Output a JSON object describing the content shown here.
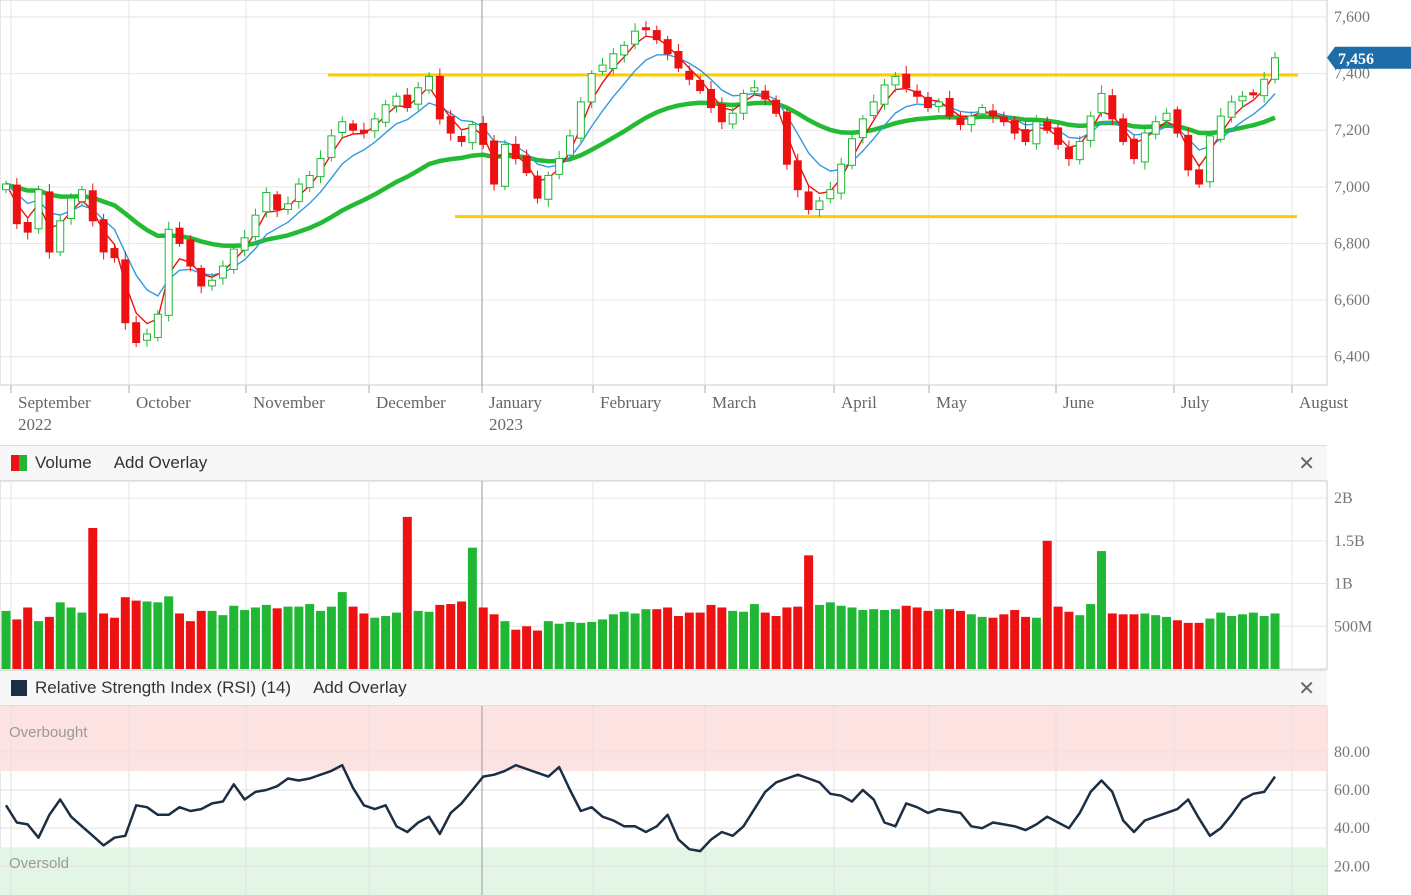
{
  "chart_data": [
    {
      "type": "candlestick",
      "title": "",
      "months": [
        "September",
        "October",
        "November",
        "December",
        "January",
        "February",
        "March",
        "April",
        "May",
        "June",
        "July",
        "August"
      ],
      "years": {
        "September": "2022",
        "January": "2023"
      },
      "y_ticks": [
        "6,400",
        "6,600",
        "6,800",
        "7,000",
        "7,200",
        "7,400",
        "7,600"
      ],
      "ylim": [
        6300,
        7660
      ],
      "last_price": "7,456",
      "support_level": 6895,
      "resistance_level": 7395,
      "close": [
        7010,
        6870,
        6840,
        6990,
        6770,
        6880,
        6960,
        6990,
        6880,
        6770,
        6750,
        6520,
        6450,
        6480,
        6550,
        6850,
        6800,
        6720,
        6650,
        6670,
        6720,
        6780,
        6820,
        6900,
        6980,
        6920,
        6940,
        7010,
        7040,
        7100,
        7180,
        7230,
        7200,
        7190,
        7240,
        7290,
        7320,
        7280,
        7350,
        7390,
        7240,
        7190,
        7160,
        7220,
        7150,
        7010,
        7150,
        7100,
        7050,
        6960,
        7040,
        7100,
        7180,
        7300,
        7400,
        7430,
        7470,
        7500,
        7550,
        7560,
        7520,
        7470,
        7420,
        7380,
        7340,
        7280,
        7230,
        7260,
        7330,
        7350,
        7310,
        7260,
        7080,
        6990,
        6920,
        6950,
        6990,
        7080,
        7170,
        7240,
        7300,
        7360,
        7390,
        7350,
        7320,
        7280,
        7300,
        7250,
        7220,
        7250,
        7280,
        7250,
        7230,
        7190,
        7160,
        7230,
        7200,
        7150,
        7100,
        7160,
        7250,
        7330,
        7240,
        7160,
        7100,
        7190,
        7230,
        7260,
        7190,
        7060,
        7010,
        7180,
        7250,
        7300,
        7320,
        7330,
        7380,
        7456
      ],
      "volume": [
        0.68,
        0.58,
        0.72,
        0.56,
        0.61,
        0.78,
        0.72,
        0.66,
        1.65,
        0.65,
        0.6,
        0.84,
        0.8,
        0.79,
        0.78,
        0.85,
        0.65,
        0.56,
        0.68,
        0.68,
        0.63,
        0.74,
        0.69,
        0.72,
        0.75,
        0.71,
        0.73,
        0.73,
        0.76,
        0.68,
        0.73,
        0.9,
        0.73,
        0.65,
        0.6,
        0.62,
        0.66,
        1.78,
        0.68,
        0.67,
        0.75,
        0.76,
        0.79,
        1.42,
        0.72,
        0.64,
        0.56,
        0.46,
        0.5,
        0.45,
        0.56,
        0.53,
        0.55,
        0.54,
        0.55,
        0.58,
        0.64,
        0.67,
        0.65,
        0.7,
        0.7,
        0.72,
        0.62,
        0.66,
        0.66,
        0.75,
        0.72,
        0.68,
        0.67,
        0.76,
        0.66,
        0.62,
        0.72,
        0.73,
        1.33,
        0.75,
        0.78,
        0.74,
        0.72,
        0.69,
        0.7,
        0.69,
        0.7,
        0.74,
        0.72,
        0.68,
        0.7,
        0.7,
        0.68,
        0.64,
        0.61,
        0.6,
        0.64,
        0.69,
        0.61,
        0.6,
        1.5,
        0.73,
        0.67,
        0.63,
        0.76,
        1.38,
        0.65,
        0.64,
        0.64,
        0.65,
        0.63,
        0.61,
        0.57,
        0.54,
        0.54,
        0.59,
        0.66,
        0.62,
        0.64,
        0.66,
        0.62,
        0.65
      ]
    },
    {
      "type": "line",
      "title": "Relative Strength Index (RSI) (14)",
      "y_ticks": [
        "20.00",
        "40.00",
        "60.00",
        "80.00"
      ],
      "ylim": [
        5,
        104
      ],
      "overbought": 70,
      "oversold": 30,
      "values": [
        52,
        43,
        42,
        35,
        47,
        55,
        46,
        41,
        36,
        31,
        35,
        36,
        52,
        51,
        47,
        47,
        51,
        49,
        50,
        53,
        54,
        63,
        55,
        59,
        60,
        62,
        66,
        65,
        66,
        68,
        70,
        73,
        61,
        52,
        50,
        52,
        41,
        38,
        43,
        46,
        37,
        48,
        53,
        60,
        67,
        68,
        70,
        73,
        71,
        69,
        67,
        72,
        60,
        49,
        51,
        46,
        44,
        41,
        41,
        38,
        41,
        47,
        34,
        29,
        28,
        34,
        38,
        36,
        41,
        50,
        59,
        64,
        66,
        68,
        66,
        64,
        58,
        57,
        54,
        60,
        55,
        43,
        41,
        53,
        51,
        48,
        50,
        49,
        48,
        41,
        40,
        43,
        42,
        41,
        39,
        42,
        46,
        43,
        40,
        48,
        59,
        65,
        59,
        44,
        38,
        44,
        46,
        48,
        50,
        55,
        45,
        36,
        40,
        47,
        55,
        58,
        59,
        67
      ]
    }
  ],
  "volume_panel": {
    "label": "Volume",
    "overlay": "Add Overlay",
    "y_ticks": [
      "500M",
      "1B",
      "1.5B",
      "2B"
    ]
  },
  "rsi_panel": {
    "label": "Relative Strength Index (RSI) (14)",
    "overlay": "Add Overlay",
    "overbought_label": "Overbought",
    "oversold_label": "Oversold"
  },
  "colors": {
    "up": "#1fb734",
    "down": "#ee1111",
    "ema_fast": "#ee1111",
    "ema_mid": "#3399dd",
    "ma_slow": "#22bb33",
    "level": "#ffcc00",
    "price_tag": "#1f6da8",
    "rsi_line": "#1c2e43"
  }
}
